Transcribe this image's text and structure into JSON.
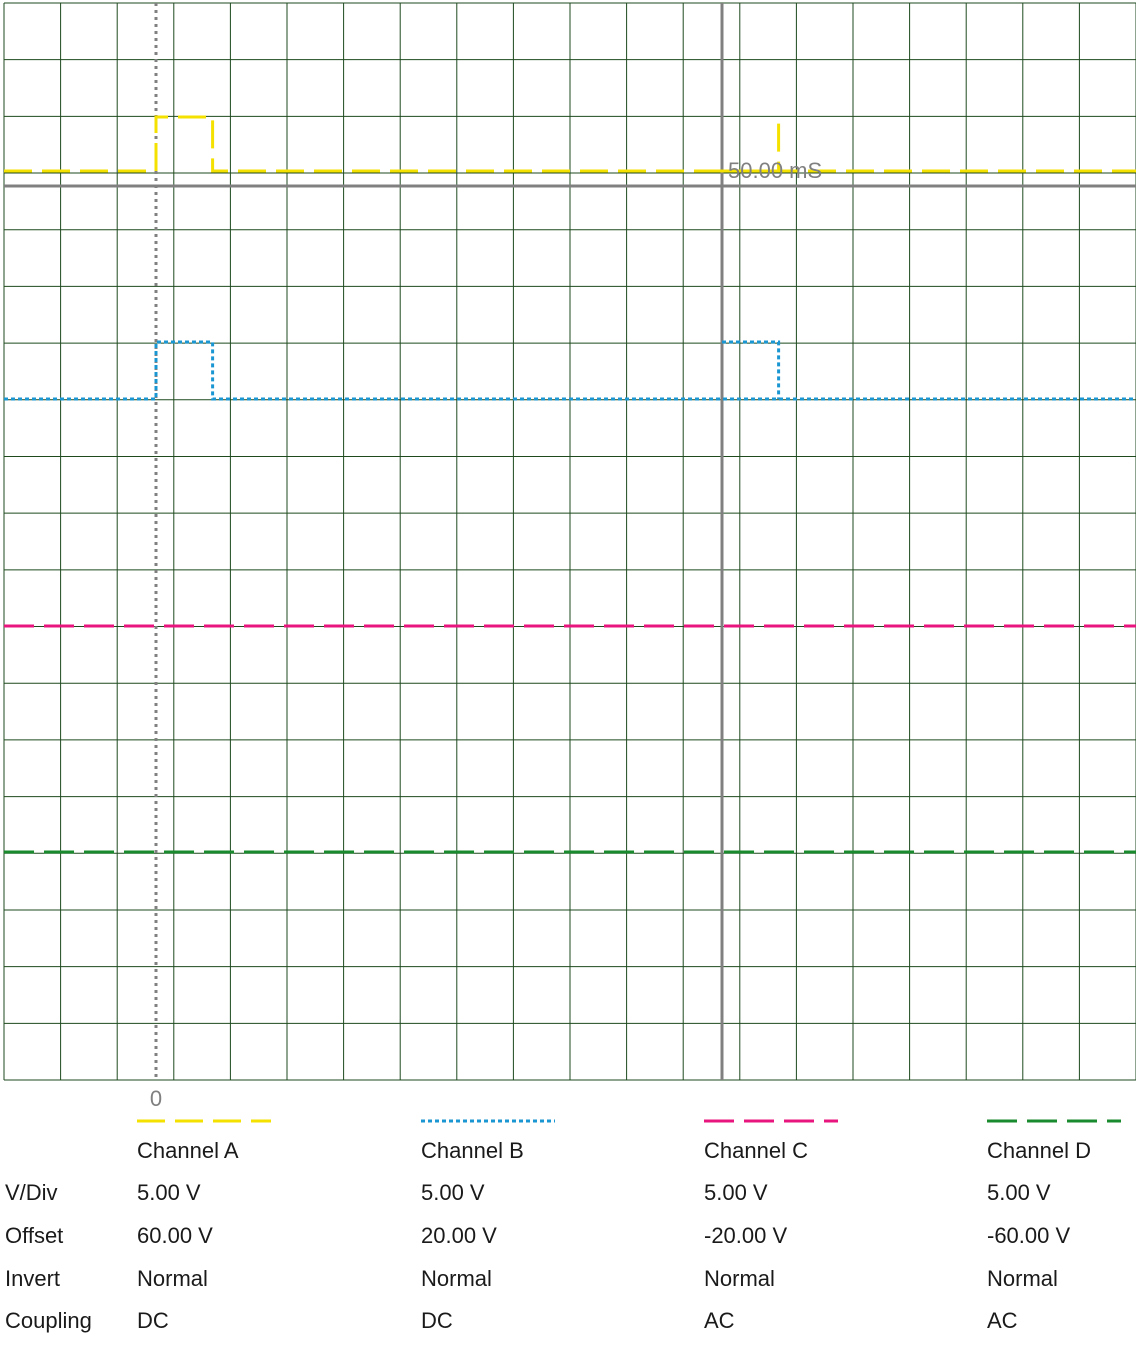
{
  "chart_data": {
    "type": "line",
    "title": "",
    "time_cursor_label": "50.00 mS",
    "zero_label": "0",
    "grid": true,
    "grid_color": "#1e4a1e",
    "x_divisions": 20,
    "y_divisions": 19,
    "series": [
      {
        "name": "Channel A",
        "color": "#f5e100",
        "dash": "28,10",
        "trace": [
          [
            -2.7,
            1
          ],
          [
            0,
            1
          ],
          [
            0,
            0
          ],
          [
            1,
            0
          ],
          [
            1,
            1
          ],
          [
            10,
            1
          ],
          [
            11,
            1
          ],
          [
            11,
            1
          ],
          [
            20,
            1
          ]
        ],
        "pre_trace_gap": [
          10,
          11
        ]
      },
      {
        "name": "Channel B",
        "color": "#1a96d2",
        "dash": "4,3",
        "trace": [
          [
            -2.7,
            0
          ],
          [
            0,
            0
          ],
          [
            0,
            1
          ],
          [
            1,
            1
          ],
          [
            1,
            0
          ],
          [
            20,
            0
          ]
        ],
        "second_pulse": [
          [
            10,
            1
          ],
          [
            11,
            1
          ],
          [
            11,
            0
          ]
        ]
      },
      {
        "name": "Channel C",
        "color": "#e8157e",
        "dash": "30,10",
        "trace": [
          [
            -2.7,
            0
          ],
          [
            20,
            0
          ]
        ]
      },
      {
        "name": "Channel D",
        "color": "#1a8a2e",
        "dash": "30,10",
        "trace": [
          [
            -2.7,
            0
          ],
          [
            20,
            0
          ]
        ]
      }
    ]
  },
  "legend": {
    "row_labels": [
      "V/Div",
      "Offset",
      "Invert",
      "Coupling"
    ],
    "channels": [
      {
        "name": "Channel A",
        "vdiv": "5.00 V",
        "offset": "60.00 V",
        "invert": "Normal",
        "coupling": "DC",
        "color": "#f5e100",
        "dash": "28,10"
      },
      {
        "name": "Channel B",
        "vdiv": "5.00 V",
        "offset": "20.00 V",
        "invert": "Normal",
        "coupling": "DC",
        "color": "#1a96d2",
        "dash": "4,3"
      },
      {
        "name": "Channel C",
        "vdiv": "5.00 V",
        "offset": "-20.00 V",
        "invert": "Normal",
        "coupling": "AC",
        "color": "#e8157e",
        "dash": "30,10"
      },
      {
        "name": "Channel D",
        "vdiv": "5.00 V",
        "offset": "-60.00 V",
        "invert": "Normal",
        "coupling": "AC",
        "color": "#1a8a2e",
        "dash": "30,10"
      }
    ]
  }
}
